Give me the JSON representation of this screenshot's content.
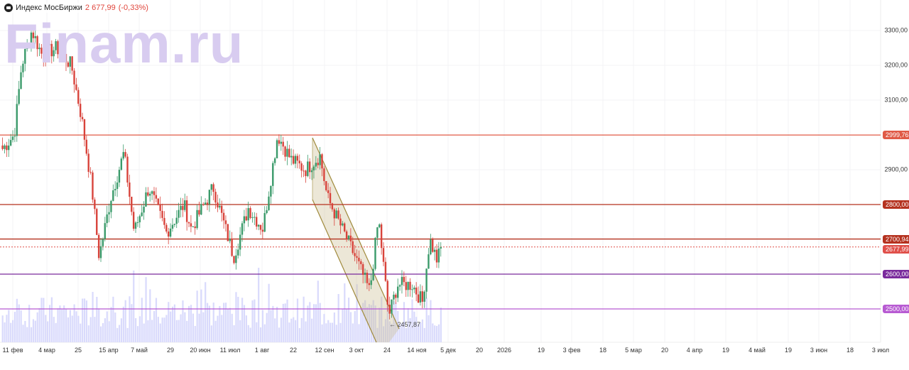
{
  "header": {
    "title": "Индекс МосБиржи",
    "price": "2 677,99",
    "change": "(-0,33%)"
  },
  "watermark": "Finam.ru",
  "chart_data": {
    "type": "candlestick",
    "title": "Индекс МосБиржи",
    "x_unit": "calendar days since 11 фев 2025",
    "path_anchors": [
      [
        -7,
        2960
      ],
      [
        1,
        3000
      ],
      [
        6,
        3200
      ],
      [
        13,
        3300
      ],
      [
        20,
        3230
      ],
      [
        30,
        3250
      ],
      [
        40,
        3200
      ],
      [
        47,
        3050
      ],
      [
        54,
        2850
      ],
      [
        59,
        2650
      ],
      [
        67,
        2820
      ],
      [
        76,
        2950
      ],
      [
        83,
        2720
      ],
      [
        93,
        2850
      ],
      [
        105,
        2720
      ],
      [
        117,
        2800
      ],
      [
        122,
        2730
      ],
      [
        137,
        2850
      ],
      [
        151,
        2650
      ],
      [
        161,
        2790
      ],
      [
        171,
        2730
      ],
      [
        181,
        3000
      ],
      [
        190,
        2930
      ],
      [
        200,
        2900
      ],
      [
        210,
        2940
      ],
      [
        215,
        2820
      ],
      [
        224,
        2740
      ],
      [
        234,
        2650
      ],
      [
        244,
        2550
      ],
      [
        250,
        2760
      ],
      [
        253,
        2640
      ],
      [
        257,
        2480
      ],
      [
        263,
        2570
      ],
      [
        273,
        2570
      ],
      [
        280,
        2520
      ],
      [
        285,
        2700
      ],
      [
        290,
        2640
      ],
      [
        293,
        2678
      ]
    ],
    "ylim": [
      2400,
      3380
    ],
    "y_ticks": [
      {
        "v": 3300,
        "label": "3300,00"
      },
      {
        "v": 3200,
        "label": "3200,00"
      },
      {
        "v": 3100,
        "label": "3100,00"
      },
      {
        "v": 2900,
        "label": "2900,00"
      }
    ],
    "x_ticks": [
      "11 фев",
      "4 мар",
      "25",
      "15 апр",
      "7 май",
      "29",
      "20 июн",
      "11 июл",
      "1 авг",
      "22",
      "12 сен",
      "3 окт",
      "24",
      "14 ноя",
      "5 дек",
      "20",
      "2026",
      "19",
      "3 фев",
      "18",
      "5 мар",
      "20",
      "4 апр",
      "19",
      "4 май",
      "19",
      "3 июн",
      "18",
      "3 июл"
    ],
    "levels": [
      {
        "v": 2999.76,
        "label": "2999,76",
        "color": "#e05a46"
      },
      {
        "v": 2800,
        "label": "2800,00",
        "color": "#b5321f"
      },
      {
        "v": 2700.94,
        "label": "2700,94",
        "color": "#b5321f"
      },
      {
        "v": 2677.99,
        "label": "2677,99",
        "color": "#e0504a",
        "dotted": true
      },
      {
        "v": 2600,
        "label": "2600,00",
        "color": "#7a2a9c"
      },
      {
        "v": 2500,
        "label": "2500,00",
        "color": "#b75ad2"
      }
    ],
    "low_annotation": "← 2457,87",
    "colors": {
      "up": "#3a9a6a",
      "down": "#d8433b",
      "volume": "#d9dafc",
      "channel": "#a08a3c"
    }
  }
}
